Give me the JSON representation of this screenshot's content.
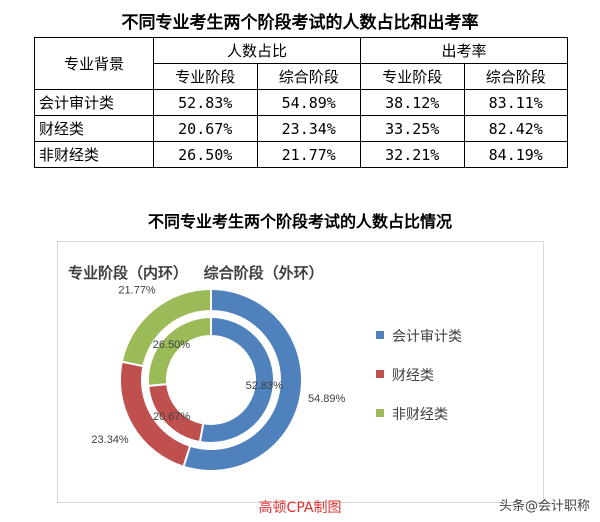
{
  "table": {
    "title": "不同专业考生两个阶段考试的人数占比和出考率",
    "header": {
      "background": "专业背景",
      "group_ratio": "人数占比",
      "group_rate": "出考率",
      "sub": [
        "专业阶段",
        "综合阶段",
        "专业阶段",
        "综合阶段"
      ]
    },
    "rows": [
      {
        "name": "会计审计类",
        "values": [
          "52.83%",
          "54.89%",
          "38.12%",
          "83.11%"
        ]
      },
      {
        "name": "财经类",
        "values": [
          "20.67%",
          "23.34%",
          "33.25%",
          "82.42%"
        ]
      },
      {
        "name": "非财经类",
        "values": [
          "26.50%",
          "21.77%",
          "32.21%",
          "84.19%"
        ]
      }
    ]
  },
  "chart_data": {
    "type": "pie",
    "title": "不同专业考生两个阶段考试的人数占比情况",
    "subtitle": "专业阶段（内环）   综合阶段（外环）",
    "categories": [
      "会计审计类",
      "财经类",
      "非财经类"
    ],
    "colors": [
      "#4f81bd",
      "#c0504d",
      "#9bbb59"
    ],
    "series": [
      {
        "name": "专业阶段",
        "ring": "inner",
        "values": [
          52.83,
          20.67,
          26.5
        ],
        "labels": [
          "52.83%",
          "20.67%",
          "26.50%"
        ]
      },
      {
        "name": "综合阶段",
        "ring": "outer",
        "values": [
          54.89,
          23.34,
          21.77
        ],
        "labels": [
          "54.89%",
          "23.34%",
          "21.77%"
        ]
      }
    ],
    "legend_position": "right"
  },
  "credit": "高顿CPA制图",
  "watermark": "头条@会计职称"
}
